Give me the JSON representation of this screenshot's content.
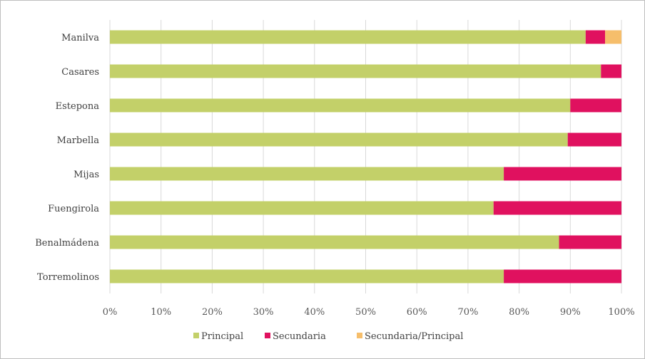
{
  "chart_data": {
    "type": "bar",
    "orientation": "horizontal",
    "stacked": "percent",
    "title": "",
    "xlabel": "",
    "ylabel": "",
    "categories": [
      "Manilva",
      "Casares",
      "Estepona",
      "Marbella",
      "Mijas",
      "Fuengirola",
      "Benalmádena",
      "Torremolinos"
    ],
    "series": [
      {
        "name": "Principal",
        "color": "#c3d069",
        "values": [
          93,
          96,
          90,
          89.5,
          77,
          75,
          87.8,
          77
        ]
      },
      {
        "name": "Secundaria",
        "color": "#e0115f",
        "values": [
          3.8,
          4,
          10,
          10.5,
          23,
          25,
          12.2,
          23
        ]
      },
      {
        "name": "Secundaria/Principal",
        "color": "#f6be6b",
        "values": [
          3.2,
          0,
          0,
          0,
          0,
          0,
          0,
          0
        ]
      }
    ],
    "xticks": [
      "0%",
      "10%",
      "20%",
      "30%",
      "40%",
      "50%",
      "60%",
      "70%",
      "80%",
      "90%",
      "100%"
    ],
    "xlim": [
      0,
      100
    ],
    "grid": "vertical",
    "legend": "bottom-center"
  }
}
